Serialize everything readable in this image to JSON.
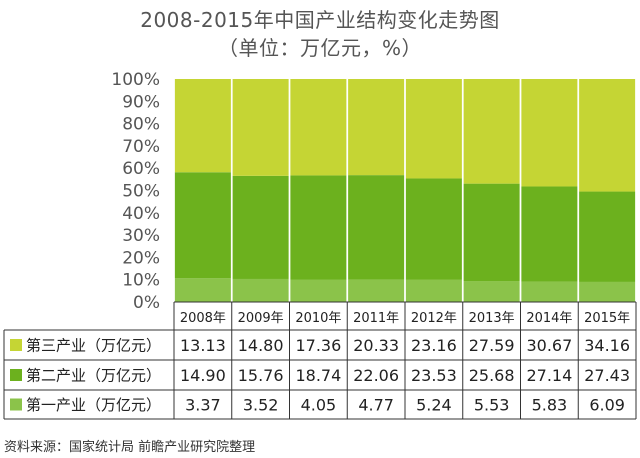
{
  "title": "2008-2015年中国产业结构变化走势图",
  "subtitle": "（单位：万亿元，%）",
  "source": "资料来源：国家统计局 前瞻产业研究院整理",
  "colors": {
    "tertiary": "#c5d534",
    "secondary": "#6cb11e",
    "primary": "#8bc34a",
    "grid": "#bbbbbb",
    "table_border": "#333333"
  },
  "chart_data": {
    "type": "bar",
    "stacked": "percent",
    "categories": [
      "2008年",
      "2009年",
      "2010年",
      "2011年",
      "2012年",
      "2013年",
      "2014年",
      "2015年"
    ],
    "y_ticks": [
      "0%",
      "10%",
      "20%",
      "30%",
      "40%",
      "50%",
      "60%",
      "70%",
      "80%",
      "90%",
      "100%"
    ],
    "ylim": [
      0,
      100
    ],
    "grid": false,
    "legend": "table-left",
    "series": [
      {
        "name": "第三产业（万亿元）",
        "color_key": "tertiary",
        "values": [
          13.13,
          14.8,
          17.36,
          20.33,
          23.16,
          27.59,
          30.67,
          34.16
        ],
        "labels": [
          "13.13",
          "14.80",
          "17.36",
          "20.33",
          "23.16",
          "27.59",
          "30.67",
          "34.16"
        ]
      },
      {
        "name": "第二产业（万亿元）",
        "color_key": "secondary",
        "values": [
          14.9,
          15.76,
          18.74,
          22.06,
          23.53,
          25.68,
          27.14,
          27.43
        ],
        "labels": [
          "14.90",
          "15.76",
          "18.74",
          "22.06",
          "23.53",
          "25.68",
          "27.14",
          "27.43"
        ]
      },
      {
        "name": "第一产业（万亿元）",
        "color_key": "primary",
        "values": [
          3.37,
          3.52,
          4.05,
          4.77,
          5.24,
          5.53,
          5.83,
          6.09
        ],
        "labels": [
          "3.37",
          "3.52",
          "4.05",
          "4.77",
          "5.24",
          "5.53",
          "5.83",
          "6.09"
        ]
      }
    ]
  }
}
